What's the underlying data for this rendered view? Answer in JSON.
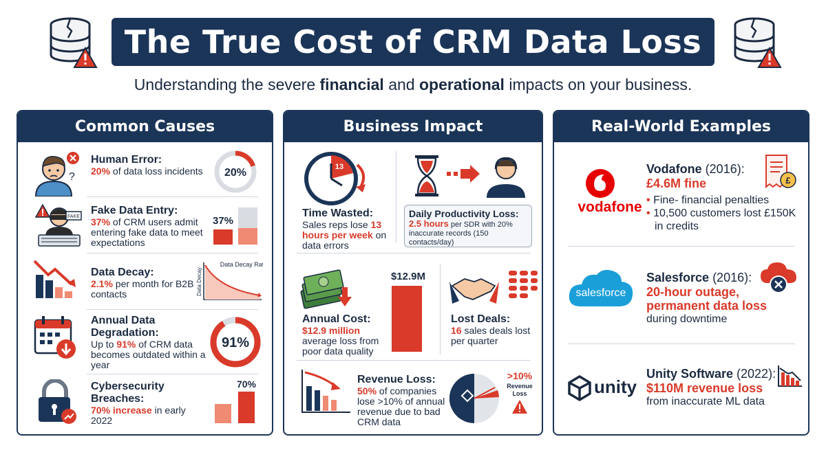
{
  "header": {
    "title": "The True Cost of CRM Data Loss",
    "subtitle_pre": "Understanding the severe ",
    "subtitle_bold1": "financial",
    "subtitle_mid": " and ",
    "subtitle_bold2": "operational",
    "subtitle_post": " impacts on your business."
  },
  "causes": {
    "heading": "Common Causes",
    "human_error": {
      "title": "Human Error:",
      "pct": "20%",
      "rest": " of data loss incidents",
      "gauge": "20%",
      "value": 0.2
    },
    "fake_entry": {
      "title": "Fake Data Entry:",
      "pct": "37%",
      "rest": " of CRM users admit entering fake data to meet expectations",
      "bar_label": "37%",
      "value": 0.37,
      "badge": "FAKE"
    },
    "decay": {
      "title": "Data Decay:",
      "pct": "2.1%",
      "rest": " per month for B2B contacts",
      "chart_title": "Data Decay Rate",
      "chart_ylabel": "Data Decay"
    },
    "degradation": {
      "title1": "Annual Data",
      "title2": "Degradation:",
      "pre": "Up to ",
      "pct": "91%",
      "rest": " of CRM data becomes outdated within a year",
      "gauge": "91%",
      "value": 0.91
    },
    "breaches": {
      "title1": "Cybersecurity",
      "title2": "Breaches:",
      "pct": "70% increase",
      "rest": " in early 2022",
      "bar_label": "70%",
      "value": 0.7
    }
  },
  "impact": {
    "heading": "Business Impact",
    "time": {
      "title": "Time Wasted:",
      "pre": "Sales reps lose ",
      "hl": "13 hours per week",
      "rest": " on data errors",
      "clock": "13"
    },
    "productivity": {
      "title": "Daily Productivity Loss:",
      "hl": "2.5 hours",
      "rest": " per SDR with 20% inaccurate records (150 contacts/day)"
    },
    "cost": {
      "title": "Annual Cost:",
      "hl": "$12.9 million",
      "rest": " average loss from poor data quality",
      "bar_label": "$12.9M"
    },
    "deals": {
      "title": "Lost Deals:",
      "hl": "16",
      "rest": " sales deals lost per quarter"
    },
    "revenue": {
      "title": "Revenue Loss:",
      "hl": "50%",
      "rest": " of companies lose >10% of annual revenue due to bad CRM data",
      "pie_pct": ">10%",
      "pie_label1": "Revenue",
      "pie_label2": "Loss"
    }
  },
  "examples": {
    "heading": "Real-World Examples",
    "vodafone": {
      "logo": "vodafone",
      "name": "Vodafone",
      "year": " (2016):",
      "big": "£4.6M fine",
      "b1": "Fine- financial penalties",
      "b2": "10,500 customers lost £150K in credits"
    },
    "salesforce": {
      "logo": "salesforce",
      "name": "Salesforce",
      "year": " (2016):",
      "big1": "20-hour outage,",
      "big2": "permanent data loss",
      "rest": "during downtime"
    },
    "unity": {
      "logo": "unity",
      "name": "Unity Software",
      "year": " (2022):",
      "big": "$110M revenue loss",
      "rest": "from inaccurate ML data"
    }
  },
  "colors": {
    "navy": "#1b3558",
    "red": "#d93a2a",
    "salmon": "#ef8a73",
    "grey": "#d9dde2"
  }
}
